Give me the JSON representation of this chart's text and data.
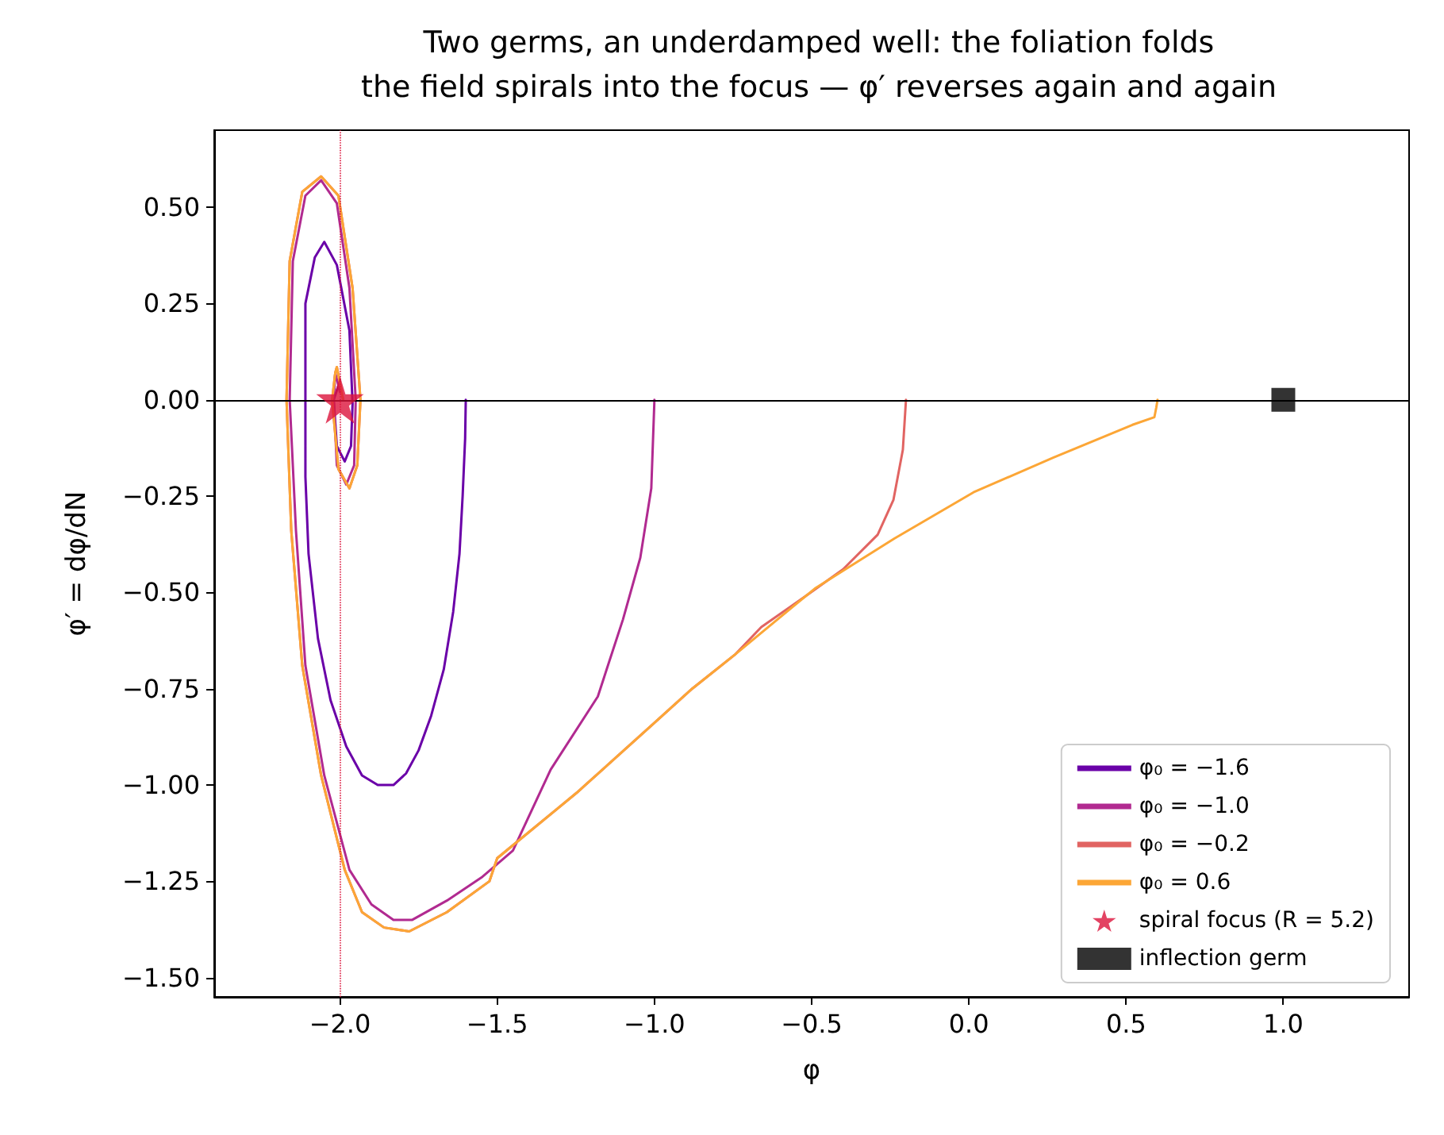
{
  "chart_data": {
    "type": "line",
    "title": "Two germs, an underdamped well: the foliation folds\nthe field spirals into the focus — φ′ reverses again and again",
    "xlabel": "φ",
    "ylabel": "φ′ = dφ/dN",
    "xlim": [
      -2.4,
      1.4
    ],
    "ylim": [
      -1.55,
      0.7
    ],
    "xticks": [
      {
        "value": -2,
        "label": "−2.0"
      },
      {
        "value": -1.5,
        "label": "−1.5"
      },
      {
        "value": -1,
        "label": "−1.0"
      },
      {
        "value": -0.5,
        "label": "−0.5"
      },
      {
        "value": 0,
        "label": "0.0"
      },
      {
        "value": 0.5,
        "label": "0.5"
      },
      {
        "value": 1,
        "label": "1.0"
      }
    ],
    "yticks": [
      {
        "value": -1.5,
        "label": "−1.50"
      },
      {
        "value": -1.25,
        "label": "−1.25"
      },
      {
        "value": -1,
        "label": "−1.00"
      },
      {
        "value": -0.75,
        "label": "−0.75"
      },
      {
        "value": -0.5,
        "label": "−0.50"
      },
      {
        "value": -0.25,
        "label": "−0.25"
      },
      {
        "value": 0,
        "label": "0.00"
      },
      {
        "value": 0.25,
        "label": "0.25"
      },
      {
        "value": 0.5,
        "label": "0.50"
      }
    ],
    "grid": false,
    "legend": "bottom right",
    "marker": "none",
    "line_style": "solid",
    "ref_lines": [
      {
        "axis": "y",
        "value": 0,
        "color": "#000000",
        "line_style": "solid"
      },
      {
        "axis": "x",
        "value": -2,
        "color": "#dc143c",
        "line_style": "dotted"
      }
    ],
    "series": [
      {
        "name": "φ₀ = −1.6",
        "color": "#6a00a8",
        "x": [
          -1.6,
          -1.602,
          -1.61,
          -1.62,
          -1.64,
          -1.67,
          -1.71,
          -1.75,
          -1.79,
          -1.83,
          -1.88,
          -1.93,
          -1.98,
          -2.03,
          -2.07,
          -2.1,
          -2.11,
          -2.11,
          -2.11,
          -2.08,
          -2.05,
          -2.01,
          -1.97,
          -1.96,
          -1.965,
          -1.985,
          -2.01,
          -2.02,
          -2.0
        ],
        "values": [
          0,
          -0.1,
          -0.25,
          -0.4,
          -0.55,
          -0.7,
          -0.82,
          -0.91,
          -0.97,
          -1.0,
          -1.0,
          -0.975,
          -0.9,
          -0.78,
          -0.62,
          -0.4,
          -0.2,
          0.0,
          0.25,
          0.37,
          0.41,
          0.35,
          0.18,
          -0.01,
          -0.12,
          -0.16,
          -0.12,
          0.0,
          0.05
        ]
      },
      {
        "name": "φ₀ = −1.0",
        "color": "#b12a90",
        "x": [
          -1.0,
          -1.01,
          -1.045,
          -1.1,
          -1.18,
          -1.33,
          -1.45,
          -1.55,
          -1.66,
          -1.77,
          -1.83,
          -1.9,
          -1.97,
          -2.05,
          -2.11,
          -2.14,
          -2.16,
          -2.15,
          -2.11,
          -2.06,
          -2.01,
          -1.97,
          -1.95,
          -1.955,
          -1.98,
          -2.01,
          -2.02,
          -2.015,
          -2.0
        ],
        "values": [
          0,
          -0.23,
          -0.41,
          -0.57,
          -0.77,
          -0.96,
          -1.17,
          -1.24,
          -1.3,
          -1.35,
          -1.35,
          -1.31,
          -1.22,
          -0.975,
          -0.69,
          -0.34,
          0.0,
          0.36,
          0.53,
          0.57,
          0.51,
          0.29,
          0.0,
          -0.17,
          -0.22,
          -0.17,
          0.0,
          0.07,
          0.02
        ]
      },
      {
        "name": "φ₀ = −0.2",
        "color": "#e16462",
        "x": [
          -0.2,
          -0.21,
          -0.24,
          -0.29,
          -0.4,
          -0.52,
          -0.66,
          -0.742,
          -0.88,
          -0.995,
          -1.22,
          -1.247,
          -1.5,
          -1.525,
          -1.66,
          -1.78,
          -1.86,
          -1.93,
          -1.985,
          -2.06,
          -2.12,
          -2.155,
          -2.17,
          -2.16,
          -2.12,
          -2.06,
          -2.005,
          -1.96,
          -1.935,
          -1.945,
          -1.97,
          -2.005,
          -2.025,
          -2.015,
          -2.01,
          -1.99
        ],
        "values": [
          0,
          -0.13,
          -0.26,
          -0.35,
          -0.44,
          -0.51,
          -0.59,
          -0.66,
          -0.75,
          -0.835,
          -1.0,
          -1.02,
          -1.19,
          -1.25,
          -1.33,
          -1.38,
          -1.37,
          -1.33,
          -1.22,
          -0.975,
          -0.69,
          -0.34,
          0.0,
          0.36,
          0.54,
          0.58,
          0.53,
          0.29,
          0.0,
          -0.17,
          -0.23,
          -0.18,
          0.0,
          0.07,
          0.085,
          0.0
        ]
      },
      {
        "name": "φ₀ = 0.6",
        "color": "#fca636",
        "x": [
          0.6,
          0.596,
          0.59,
          0.52,
          0.268,
          0.015,
          -0.237,
          -0.49,
          -0.742,
          -0.88,
          -0.995,
          -1.22,
          -1.247,
          -1.5,
          -1.525,
          -1.66,
          -1.78,
          -1.86,
          -1.93,
          -1.985,
          -2.06,
          -2.12,
          -2.155,
          -2.17,
          -2.16,
          -2.12,
          -2.06,
          -2.005,
          -1.96,
          -1.935,
          -1.945,
          -1.97,
          -2.005,
          -2.025,
          -2.015,
          -2.01,
          -1.99
        ],
        "values": [
          0,
          -0.02,
          -0.045,
          -0.065,
          -0.15,
          -0.24,
          -0.36,
          -0.49,
          -0.66,
          -0.75,
          -0.835,
          -1.0,
          -1.02,
          -1.19,
          -1.25,
          -1.33,
          -1.38,
          -1.37,
          -1.33,
          -1.22,
          -0.975,
          -0.69,
          -0.34,
          0.0,
          0.36,
          0.54,
          0.58,
          0.53,
          0.29,
          0.0,
          -0.17,
          -0.23,
          -0.18,
          0.0,
          0.07,
          0.085,
          0.0
        ]
      },
      {
        "name": "spiral focus (R = 5.2)",
        "type": "scatter",
        "marker": "star",
        "color": "#dc143c",
        "x": [
          -2.0
        ],
        "values": [
          0
        ]
      },
      {
        "name": "inflection germ",
        "type": "scatter",
        "marker": "square",
        "color": "#000000",
        "x": [
          1.0
        ],
        "values": [
          0
        ]
      }
    ]
  }
}
